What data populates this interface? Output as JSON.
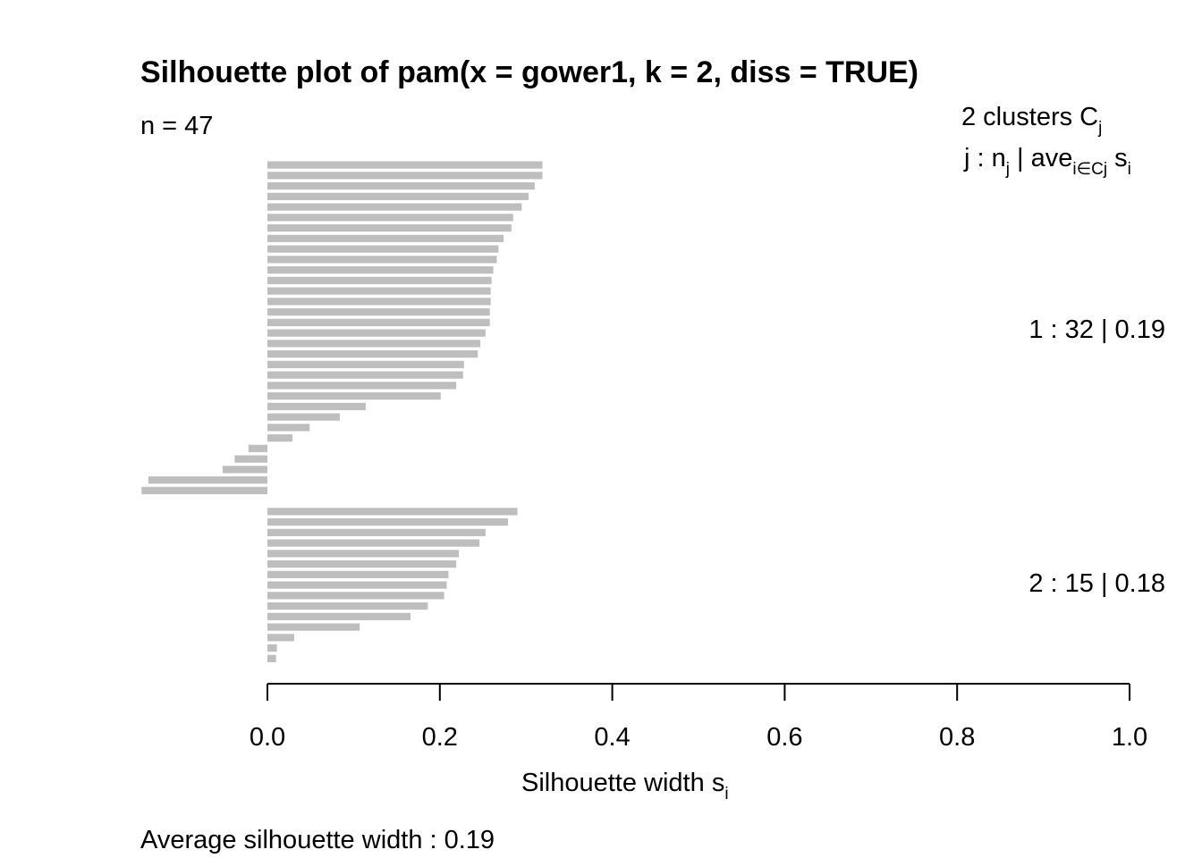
{
  "chart_data": {
    "type": "bar",
    "orientation": "horizontal",
    "title": "Silhouette plot of pam(x = gower1, k = 2, diss = TRUE)",
    "n_label": "n = 47",
    "xlabel": "Silhouette width",
    "xlabel_sub": "i",
    "xlabel_s": "s",
    "xlim": [
      0,
      1
    ],
    "xticks": [
      "0.0",
      "0.2",
      "0.4",
      "0.6",
      "0.8",
      "1.0"
    ],
    "xtick_values": [
      0,
      0.2,
      0.4,
      0.6,
      0.8,
      1.0
    ],
    "legend": {
      "line1_prefix": "2  clusters  C",
      "line1_sub": "j",
      "line2_a": "j :  n",
      "line2_a_sub": "j",
      "line2_b": " | ave",
      "line2_b_sub": "i∈Cj",
      "line2_c": "  s",
      "line2_c_sub": "i"
    },
    "bar_color": "#bebebe",
    "clusters": [
      {
        "label": "1 :   32  |  0.19",
        "n": 32,
        "avg": 0.19,
        "values": [
          0.319,
          0.319,
          0.31,
          0.303,
          0.295,
          0.285,
          0.283,
          0.274,
          0.268,
          0.266,
          0.262,
          0.26,
          0.259,
          0.259,
          0.258,
          0.258,
          0.253,
          0.247,
          0.244,
          0.228,
          0.227,
          0.219,
          0.201,
          0.114,
          0.084,
          0.049,
          0.029,
          -0.022,
          -0.038,
          -0.052,
          -0.138,
          -0.146
        ]
      },
      {
        "label": "2 :   15  |  0.18",
        "n": 15,
        "avg": 0.18,
        "values": [
          0.29,
          0.279,
          0.253,
          0.246,
          0.222,
          0.219,
          0.21,
          0.208,
          0.205,
          0.186,
          0.166,
          0.107,
          0.031,
          0.011,
          0.01
        ]
      }
    ],
    "footer": "Average silhouette width :  0.19"
  }
}
